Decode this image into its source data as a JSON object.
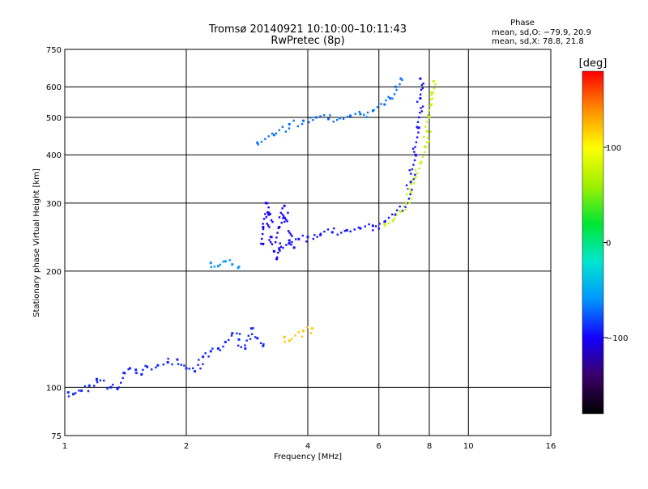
{
  "chart_data": {
    "type": "scatter",
    "title": "Tromsø 20140921 10:10:00–10:11:43",
    "subtitle": "RwPretec (8p)",
    "xlabel": "Frequency [MHz]",
    "ylabel": "Stationary phase Virtual Height [km]",
    "x_scale": "log",
    "y_scale": "log",
    "xlim": [
      1,
      16
    ],
    "ylim": [
      75,
      750
    ],
    "x_ticks": [
      1,
      2,
      4,
      6,
      8,
      10,
      16
    ],
    "x_tick_labels": [
      "1",
      "2",
      "4",
      "6",
      "8",
      "10",
      "16"
    ],
    "y_ticks": [
      75,
      100,
      200,
      300,
      400,
      500,
      600,
      750
    ],
    "y_tick_labels": [
      "75",
      "100",
      "200",
      "300",
      "400",
      "500",
      "600",
      "750"
    ],
    "grid": true,
    "phase_info": {
      "heading": "Phase",
      "line_o": "mean, sd,O: −79.9, 20.9",
      "line_x": "mean, sd,X:  78.8, 21.8"
    },
    "colorbar": {
      "label": "[deg]",
      "range": [
        -180,
        180
      ],
      "ticks": [
        100,
        0,
        -100
      ],
      "tick_labels": [
        "100",
        "0",
        "−100"
      ],
      "colors": [
        "#000000",
        "#3a0068",
        "#1400ff",
        "#0096ff",
        "#00e6d0",
        "#00e632",
        "#a0f000",
        "#ffff00",
        "#ff8c00",
        "#ff0000"
      ]
    },
    "series": [
      {
        "name": "",
        "trace": "low-E",
        "points": [
          [
            1.02,
            97
          ],
          [
            1.05,
            96
          ],
          [
            1.1,
            98
          ],
          [
            1.15,
            101
          ],
          [
            1.2,
            105
          ],
          [
            1.3,
            100
          ],
          [
            1.35,
            99
          ],
          [
            1.4,
            109
          ],
          [
            1.45,
            112
          ],
          [
            1.5,
            111
          ],
          [
            1.55,
            108
          ],
          [
            1.6,
            113
          ],
          [
            1.7,
            114
          ],
          [
            1.8,
            116
          ],
          [
            1.9,
            118
          ],
          [
            2.0,
            112
          ],
          [
            2.1,
            110
          ],
          [
            2.2,
            120
          ],
          [
            2.3,
            124
          ],
          [
            2.4,
            126
          ],
          [
            2.5,
            131
          ],
          [
            2.6,
            138
          ],
          [
            2.7,
            133
          ],
          [
            2.8,
            126
          ],
          [
            2.9,
            142
          ],
          [
            3.0,
            134
          ],
          [
            3.1,
            128
          ]
        ],
        "phase": -90
      },
      {
        "name": "",
        "trace": "F1",
        "points": [
          [
            2.3,
            210
          ],
          [
            2.4,
            206
          ],
          [
            2.5,
            212
          ],
          [
            2.6,
            208
          ],
          [
            2.7,
            205
          ]
        ],
        "phase": -60
      },
      {
        "name": "",
        "trace": "F-low-scattered",
        "points": [
          [
            3.1,
            235
          ],
          [
            3.1,
            260
          ],
          [
            3.15,
            300
          ],
          [
            3.2,
            280
          ],
          [
            3.25,
            245
          ],
          [
            3.3,
            225
          ],
          [
            3.35,
            215
          ],
          [
            3.4,
            260
          ],
          [
            3.5,
            295
          ],
          [
            3.6,
            240
          ],
          [
            3.7,
            230
          ]
        ],
        "phase": -100
      },
      {
        "name": "",
        "trace": "F2-lower",
        "points": [
          [
            3.4,
            228
          ],
          [
            3.6,
            236
          ],
          [
            3.8,
            242
          ],
          [
            4.0,
            245
          ],
          [
            4.3,
            248
          ],
          [
            4.6,
            252
          ],
          [
            5.0,
            255
          ],
          [
            5.4,
            258
          ],
          [
            5.8,
            262
          ],
          [
            6.2,
            268
          ],
          [
            6.6,
            280
          ],
          [
            7.0,
            300
          ],
          [
            7.2,
            340
          ],
          [
            7.4,
            400
          ],
          [
            7.5,
            470
          ],
          [
            7.6,
            560
          ],
          [
            7.6,
            630
          ]
        ],
        "phase": -95
      },
      {
        "name": "",
        "trace": "F2-upper",
        "points": [
          [
            3.0,
            430
          ],
          [
            3.3,
            450
          ],
          [
            3.6,
            480
          ],
          [
            3.9,
            490
          ],
          [
            4.2,
            500
          ],
          [
            4.5,
            495
          ],
          [
            4.8,
            498
          ],
          [
            5.1,
            505
          ],
          [
            5.4,
            510
          ],
          [
            5.8,
            520
          ],
          [
            6.2,
            540
          ],
          [
            6.4,
            560
          ],
          [
            6.6,
            600
          ],
          [
            6.8,
            630
          ]
        ],
        "phase": -70
      },
      {
        "name": "",
        "trace": "X-mode",
        "points": [
          [
            6.2,
            265
          ],
          [
            6.5,
            270
          ],
          [
            6.8,
            285
          ],
          [
            7.0,
            300
          ],
          [
            7.2,
            320
          ],
          [
            7.4,
            350
          ],
          [
            7.6,
            380
          ],
          [
            7.8,
            420
          ],
          [
            7.9,
            460
          ],
          [
            8.0,
            500
          ],
          [
            8.1,
            540
          ],
          [
            8.1,
            580
          ],
          [
            8.2,
            620
          ]
        ],
        "phase": 75
      },
      {
        "name": "",
        "trace": "oblique",
        "points": [
          [
            3.5,
            135
          ],
          [
            3.6,
            132
          ],
          [
            3.9,
            140
          ],
          [
            4.1,
            142
          ]
        ],
        "phase": 120
      }
    ]
  }
}
